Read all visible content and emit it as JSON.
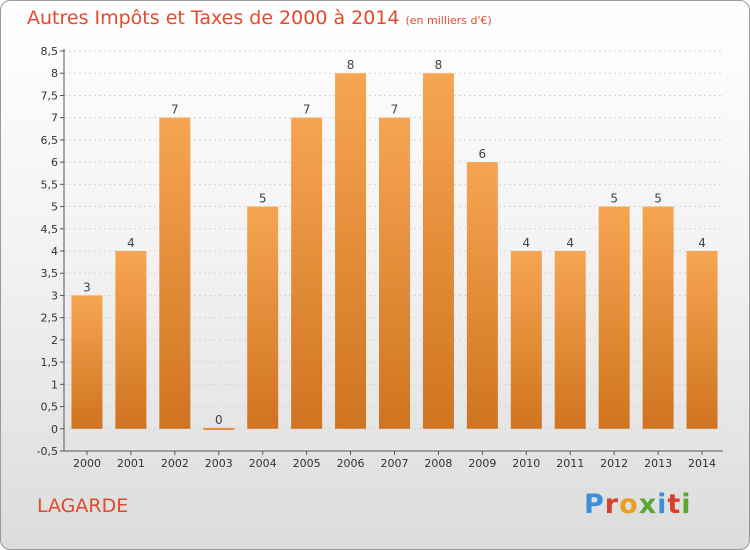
{
  "header": {
    "title": "Autres Impôts et Taxes de 2000 à 2014",
    "unit": "(en milliers d'€)"
  },
  "footer": {
    "town": "LAGARDE",
    "logo": "Proxiti"
  },
  "colors": {
    "title": "#e24a2e",
    "bar_light": "#f7a552",
    "bar_dark": "#cf7420",
    "grid": "#d4d4d4"
  },
  "chart_data": {
    "type": "bar",
    "title": "Autres Impôts et Taxes de 2000 à 2014",
    "subtitle": "(en milliers d'€)",
    "xlabel": "",
    "ylabel": "",
    "categories": [
      "2000",
      "2001",
      "2002",
      "2003",
      "2004",
      "2005",
      "2006",
      "2007",
      "2008",
      "2009",
      "2010",
      "2011",
      "2012",
      "2013",
      "2014"
    ],
    "values": [
      3,
      4,
      7,
      0,
      5,
      7,
      8,
      7,
      8,
      6,
      4,
      4,
      5,
      5,
      4
    ],
    "data_labels": [
      "3",
      "4",
      "7",
      "0",
      "5",
      "7",
      "8",
      "7",
      "8",
      "6",
      "4",
      "4",
      "5",
      "5",
      "4"
    ],
    "y_ticks": [
      "-0,5",
      "0",
      "0,5",
      "1",
      "1,5",
      "2",
      "2,5",
      "3",
      "3,5",
      "4",
      "4,5",
      "5",
      "5,5",
      "6",
      "6,5",
      "7",
      "7,5",
      "8",
      "8,5"
    ],
    "ylim": [
      -0.5,
      8.5
    ],
    "grid": true,
    "legend": "none"
  }
}
